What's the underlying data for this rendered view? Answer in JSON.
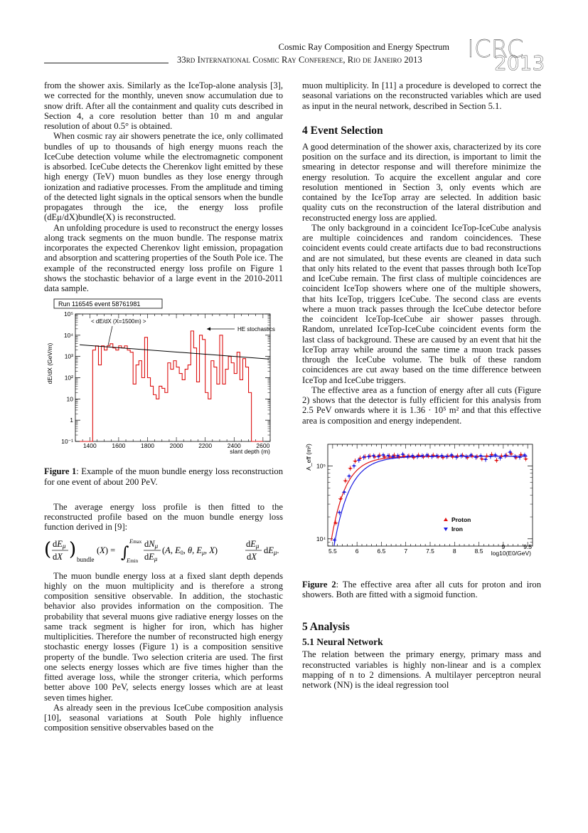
{
  "header": {
    "title": "Cosmic Ray Composition and Energy Spectrum",
    "conference": "33rd International Cosmic Ray Conference, Rio de Janeiro 2013",
    "logo_top": "ICRC",
    "logo_bottom": "2013"
  },
  "left": {
    "p1": "from the shower axis. Similarly as the IceTop-alone analysis [3], we corrected for the monthly, uneven snow accumulation due to snow drift. After all the containment and quality cuts described in Section 4, a core resolution better than 10 m and angular resolution of about 0.5° is obtained.",
    "p2": "When cosmic ray air showers penetrate the ice, only collimated bundles of up to thousands of high energy muons reach the IceCube detection volume while the electromagnetic component is absorbed. IceCube detects the Cherenkov light emitted by these high energy (TeV) muon bundles as they lose energy through ionization and radiative processes. From the amplitude and timing of the detected light signals in the optical sensors when the bundle propagates through the ice, the energy loss profile (dEμ/dX)bundle(X) is reconstructed.",
    "p3": "An unfolding procedure is used to reconstruct the energy losses along track segments on the muon bundle. The response matrix incorporates the expected Cherenkov light emission, propagation and absorption and scattering properties of the South Pole ice. The example of the reconstructed energy loss profile on Figure 1 shows the stochastic behavior of a large event in the 2010-2011 data sample.",
    "fig1_caption_label": "Figure 1",
    "fig1_caption": ": Example of the muon bundle energy loss reconstruction for one event of about 200 PeV.",
    "p4": "The average energy loss profile is then fitted to the reconstructed profile based on the muon bundle energy loss function derived in [9]:",
    "p5": "The muon bundle energy loss at a fixed slant depth depends highly on the muon multiplicity and is therefore a strong composition sensitive observable. In addition, the stochastic behavior also provides information on the composition. The probability that several muons give radiative energy losses on the same track segment is higher for iron, which has higher multiplicities. Therefore the number of reconstructed high energy stochastic energy losses (Figure 1) is a composition sensitive property of the bundle. Two selection criteria are used. The first one selects energy losses which are five times higher than the fitted average loss, while the stronger criteria, which performs better above 100 PeV, selects energy losses which are at least seven times higher.",
    "p6": "As already seen in the previous IceCube composition analysis [10], seasonal variations at South Pole highly influence composition sensitive observables based on the"
  },
  "right": {
    "p1": "muon multiplicity. In [11] a procedure is developed to correct the seasonal variations on the reconstructed variables which are used as input in the neural network, described in Section 5.1.",
    "h_event": "4 Event Selection",
    "p2": "A good determination of the shower axis, characterized by its core position on the surface and its direction, is important to limit the smearing in detector response and will therefore minimize the energy resolution. To acquire the excellent angular and core resolution mentioned in Section 3, only events which are contained by the IceTop array are selected. In addition basic quality cuts on the reconstruction of the lateral distribution and reconstructed energy loss are applied.",
    "p3": "The only background in a coincident IceTop-IceCube analysis are multiple coincidences and random coincidences. These coincident events could create artifacts due to bad reconstructions and are not simulated, but these events are cleaned in data such that only hits related to the event that passes through both IceTop and IceCube remain. The first class of multiple coincidences are coincident IceTop showers where one of the multiple showers, that hits IceTop, triggers IceCube. The second class are events where a muon track passes through the IceCube detector before the coincident IceTop-IceCube air shower passes through. Random, unrelated IceTop-IceCube coincident events form the last class of background. These are caused by an event that hit the IceTop array while around the same time a muon track passes through the IceCube volume. The bulk of these random coincidences are cut away based on the time difference between IceTop and IceCube triggers.",
    "p4": "The effective area as a function of energy after all cuts (Figure 2) shows that the detector is fully efficient for this analysis from 2.5 PeV onwards where it is 1.36 · 10⁵ m² and that this effective area is composition and energy independent.",
    "fig2_caption_label": "Figure 2",
    "fig2_caption": ": The effective area after all cuts for proton and iron showers. Both are fitted with a sigmoid function.",
    "h_analysis": "5 Analysis",
    "h_nn": "5.1 Neural Network",
    "p5": "The relation between the primary energy, primary mass and reconstructed variables is highly non-linear and is a complex mapping of n to 2 dimensions. A multilayer perceptron neural network (NN) is the ideal regression tool"
  },
  "fig1": {
    "run_label": "Run 116545 event 58761981",
    "legend_avg": "< dE/dX (X=1500m) >",
    "legend_he": "HE stochastics",
    "ylabel": "dE/dX (GeV/m)",
    "xlabel": "slant depth (m)",
    "xticks": [
      "1400",
      "1600",
      "1800",
      "2000",
      "2200",
      "2400",
      "2600"
    ],
    "yticks": [
      "10⁻¹",
      "1",
      "10",
      "10²",
      "10³",
      "10⁴",
      "10⁵"
    ],
    "colors": {
      "hist": "#dd1111",
      "fit": "#000000"
    }
  },
  "fig2": {
    "ylabel": "A_eff (m²)",
    "xlabel": "log10(E0/GeV)",
    "xticks": [
      "5.5",
      "6",
      "6.5",
      "7",
      "7.5",
      "8",
      "8.5",
      "9",
      "9.5"
    ],
    "yticks": [
      "10⁴",
      "10⁵"
    ],
    "legend": [
      {
        "name": "Proton",
        "color": "#e01010"
      },
      {
        "name": "Iron",
        "color": "#1a1ae0"
      }
    ]
  },
  "chart_data": [
    {
      "type": "line",
      "title": "Run 116545 event 58761981",
      "xlabel": "slant depth (m)",
      "ylabel": "dE/dX (GeV/m)",
      "xlim": [
        1300,
        2650
      ],
      "ylim_log10": [
        -1,
        5
      ],
      "series": [
        {
          "name": "",
          "kind": "step",
          "x": [
            1330,
            1360,
            1390,
            1420,
            1440,
            1460,
            1480,
            1500,
            1520,
            1540,
            1560,
            1580,
            1600,
            1620,
            1640,
            1660,
            1680,
            1700,
            1720,
            1740,
            1760,
            1780,
            1800,
            1820,
            1840,
            1860,
            1880,
            1900,
            1920,
            1940,
            1960,
            1980,
            2000,
            2020,
            2040,
            2060,
            2080,
            2100,
            2120,
            2140,
            2160,
            2180,
            2200,
            2220,
            2240,
            2260,
            2280,
            2300,
            2320,
            2340,
            2360,
            2380,
            2400,
            2420,
            2440,
            2460,
            2480,
            2500,
            2520,
            2540,
            2560,
            2580
          ],
          "log10_y": [
            -1,
            -1,
            -1,
            3.3,
            3.5,
            2.6,
            3.5,
            3.3,
            3.5,
            3.6,
            3.4,
            3.3,
            3.5,
            3.4,
            3.5,
            3.3,
            3.2,
            1.7,
            2.6,
            2.8,
            2.0,
            3.9,
            2.0,
            1.6,
            1.2,
            1.0,
            1.6,
            1.5,
            1.3,
            2.7,
            2.4,
            2.8,
            2.5,
            2.2,
            1.9,
            2.4,
            2.6,
            4.2,
            3.4,
            1.8,
            4.0,
            3.8,
            1.3,
            1.0,
            2.8,
            2.5,
            1.7,
            4.0,
            1.7,
            2.4,
            3.0,
            2.7,
            2.2,
            3.2,
            1.9,
            2.9,
            2.5,
            1.3,
            -1,
            -1,
            -1,
            -1
          ]
        },
        {
          "name": "< dE/dX (X=1500m) >",
          "kind": "line",
          "x": [
            1330,
            2640
          ],
          "log10_y": [
            3.55,
            2.88
          ]
        }
      ],
      "annotations": [
        "HE stochastics"
      ]
    },
    {
      "type": "scatter",
      "xlabel": "log10(E0/GeV)",
      "ylabel": "A_eff (m²)",
      "xlim": [
        5.4,
        9.6
      ],
      "ylim_log10": [
        3.9,
        5.3
      ],
      "series": [
        {
          "name": "Proton",
          "x": [
            5.55,
            5.65,
            5.75,
            5.85,
            5.95,
            6.05,
            6.15,
            6.25,
            6.35,
            6.45,
            6.55,
            6.65,
            6.75,
            6.85,
            6.95,
            7.05,
            7.15,
            7.25,
            7.35,
            7.45,
            7.55,
            7.65,
            7.75,
            7.85,
            7.95,
            8.05,
            8.15,
            8.25,
            8.35,
            8.45,
            8.55,
            8.65,
            8.75,
            8.85,
            8.95,
            9.05,
            9.15,
            9.25,
            9.35,
            9.45
          ],
          "log10_y": [
            4.22,
            4.55,
            4.8,
            4.97,
            5.07,
            5.11,
            5.13,
            5.14,
            5.13,
            5.15,
            5.13,
            5.14,
            5.15,
            5.13,
            5.14,
            5.14,
            5.12,
            5.15,
            5.13,
            5.14,
            5.15,
            5.13,
            5.12,
            5.14,
            5.13,
            5.14,
            5.15,
            5.12,
            5.14,
            5.13,
            5.1,
            5.14,
            5.16,
            5.08,
            5.14,
            5.15,
            5.17,
            5.12,
            5.16,
            5.1
          ]
        },
        {
          "name": "Iron",
          "x": [
            5.55,
            5.65,
            5.75,
            5.85,
            5.95,
            6.05,
            6.15,
            6.25,
            6.35,
            6.45,
            6.55,
            6.65,
            6.75,
            6.85,
            6.95,
            7.05,
            7.15,
            7.25,
            7.35,
            7.45,
            7.55,
            7.65,
            7.75,
            7.85,
            7.95,
            8.05,
            8.15,
            8.25,
            8.35,
            8.45,
            8.55,
            8.65,
            8.75,
            8.85,
            8.95,
            9.05,
            9.15,
            9.25,
            9.35,
            9.45
          ],
          "log10_y": [
            3.98,
            4.36,
            4.64,
            4.86,
            5.0,
            5.08,
            5.12,
            5.13,
            5.14,
            5.13,
            5.15,
            5.14,
            5.13,
            5.14,
            5.16,
            5.13,
            5.14,
            5.13,
            5.14,
            5.15,
            5.13,
            5.14,
            5.14,
            5.13,
            5.15,
            5.12,
            5.14,
            5.13,
            5.15,
            5.12,
            5.14,
            5.09,
            5.13,
            5.15,
            5.11,
            5.14,
            5.19,
            5.13,
            5.12,
            5.15
          ]
        }
      ]
    }
  ]
}
